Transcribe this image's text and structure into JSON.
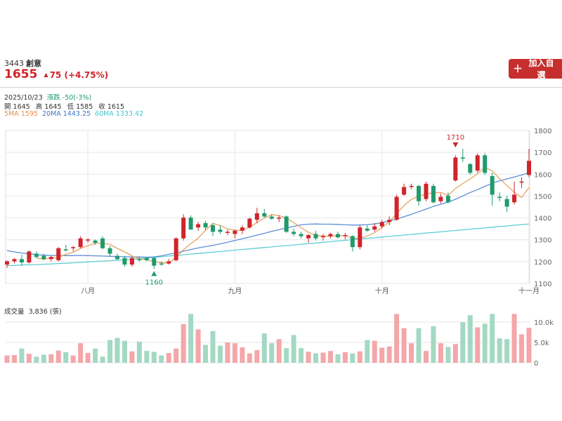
{
  "stock": {
    "code": "3443",
    "name": "創意",
    "price": "1655",
    "change": "75",
    "change_pct": "(+4.75%)",
    "up_icon": "up-triangle-icon",
    "color_up": "#d0242b",
    "color_down": "#1e9b6b"
  },
  "watchlist_button": {
    "label": "加入自選",
    "icon": "plus-icon",
    "color": "#c62f2d"
  },
  "day_info": {
    "date": "2025/10/23",
    "change_text": "漲跌 -50(-3%)",
    "open_label": "開",
    "open": "1645",
    "high_label": "高",
    "high": "1645",
    "low_label": "低",
    "low": "1585",
    "close_label": "收",
    "close": "1615",
    "ma5": "5MA 1595",
    "ma20": "20MA 1443.25",
    "ma60": "60MA 1333.42"
  },
  "volume_panel": {
    "title": "成交量",
    "value": "3,836 (張)"
  },
  "chart_data": {
    "type": "candlestick",
    "price_axis": {
      "min": 1100,
      "max": 1800,
      "ticks": [
        "1800",
        "1700",
        "1600",
        "1500",
        "1400",
        "1300",
        "1200",
        "1100"
      ]
    },
    "x_ticks": [
      {
        "index": 11,
        "label": "八月"
      },
      {
        "index": 31,
        "label": "九月"
      },
      {
        "index": 51,
        "label": "十月"
      },
      {
        "index": 71,
        "label": "十一月"
      }
    ],
    "annotations": [
      {
        "label": "1710",
        "index": 61,
        "value": 1710,
        "kind": "high"
      },
      {
        "label": "1160",
        "index": 20,
        "value": 1160,
        "kind": "low"
      }
    ],
    "candles": [
      [
        1180,
        1200,
        1165,
        1195
      ],
      [
        1195,
        1210,
        1185,
        1205
      ],
      [
        1205,
        1225,
        1175,
        1190
      ],
      [
        1190,
        1245,
        1185,
        1240
      ],
      [
        1230,
        1240,
        1210,
        1215
      ],
      [
        1220,
        1230,
        1200,
        1205
      ],
      [
        1205,
        1220,
        1195,
        1215
      ],
      [
        1200,
        1260,
        1195,
        1255
      ],
      [
        1250,
        1270,
        1240,
        1245
      ],
      [
        1255,
        1265,
        1240,
        1260
      ],
      [
        1260,
        1310,
        1255,
        1300
      ],
      [
        1290,
        1300,
        1280,
        1295
      ],
      [
        1290,
        1295,
        1270,
        1280
      ],
      [
        1300,
        1310,
        1250,
        1255
      ],
      [
        1255,
        1265,
        1220,
        1230
      ],
      [
        1220,
        1230,
        1200,
        1205
      ],
      [
        1210,
        1220,
        1170,
        1180
      ],
      [
        1180,
        1215,
        1170,
        1210
      ],
      [
        1205,
        1215,
        1195,
        1200
      ],
      [
        1210,
        1215,
        1195,
        1200
      ],
      [
        1210,
        1215,
        1160,
        1175
      ],
      [
        1185,
        1195,
        1175,
        1180
      ],
      [
        1185,
        1205,
        1180,
        1195
      ],
      [
        1200,
        1305,
        1195,
        1300
      ],
      [
        1300,
        1410,
        1290,
        1395
      ],
      [
        1395,
        1405,
        1340,
        1340
      ],
      [
        1350,
        1375,
        1335,
        1365
      ],
      [
        1370,
        1380,
        1335,
        1350
      ],
      [
        1360,
        1370,
        1310,
        1330
      ],
      [
        1340,
        1360,
        1320,
        1330
      ],
      [
        1325,
        1340,
        1315,
        1330
      ],
      [
        1320,
        1340,
        1300,
        1335
      ],
      [
        1335,
        1360,
        1320,
        1350
      ],
      [
        1350,
        1395,
        1345,
        1390
      ],
      [
        1385,
        1440,
        1370,
        1415
      ],
      [
        1415,
        1435,
        1395,
        1400
      ],
      [
        1400,
        1410,
        1385,
        1390
      ],
      [
        1390,
        1405,
        1375,
        1395
      ],
      [
        1400,
        1405,
        1325,
        1330
      ],
      [
        1330,
        1345,
        1310,
        1320
      ],
      [
        1320,
        1330,
        1300,
        1310
      ],
      [
        1300,
        1320,
        1280,
        1315
      ],
      [
        1320,
        1335,
        1290,
        1300
      ],
      [
        1305,
        1320,
        1290,
        1310
      ],
      [
        1310,
        1325,
        1300,
        1320
      ],
      [
        1320,
        1330,
        1300,
        1305
      ],
      [
        1310,
        1325,
        1295,
        1315
      ],
      [
        1310,
        1315,
        1240,
        1260
      ],
      [
        1260,
        1360,
        1250,
        1350
      ],
      [
        1345,
        1360,
        1330,
        1335
      ],
      [
        1340,
        1370,
        1330,
        1355
      ],
      [
        1355,
        1385,
        1345,
        1375
      ],
      [
        1375,
        1400,
        1360,
        1385
      ],
      [
        1385,
        1500,
        1380,
        1490
      ],
      [
        1500,
        1550,
        1495,
        1535
      ],
      [
        1535,
        1550,
        1525,
        1540
      ],
      [
        1540,
        1545,
        1450,
        1470
      ],
      [
        1480,
        1560,
        1470,
        1550
      ],
      [
        1540,
        1550,
        1460,
        1465
      ],
      [
        1470,
        1505,
        1460,
        1490
      ],
      [
        1495,
        1510,
        1460,
        1465
      ],
      [
        1565,
        1680,
        1560,
        1670
      ],
      [
        1670,
        1710,
        1650,
        1665
      ],
      [
        1640,
        1645,
        1590,
        1600
      ],
      [
        1610,
        1690,
        1600,
        1680
      ],
      [
        1680,
        1690,
        1590,
        1600
      ],
      [
        1585,
        1600,
        1450,
        1500
      ],
      [
        1490,
        1510,
        1470,
        1485
      ],
      [
        1480,
        1495,
        1420,
        1445
      ],
      [
        1465,
        1560,
        1455,
        1500
      ],
      [
        1555,
        1580,
        1530,
        1560
      ],
      [
        1590,
        1710,
        1580,
        1655
      ]
    ],
    "volume_axis": {
      "min": 0,
      "max": 10000,
      "ticks": [
        "10.0k",
        "5.0k",
        "0"
      ]
    },
    "volume": [
      1800,
      1900,
      3500,
      2200,
      1500,
      2000,
      2100,
      3000,
      2600,
      1800,
      4800,
      2400,
      3500,
      1500,
      5600,
      6100,
      5400,
      2800,
      5200,
      2900,
      2700,
      1800,
      2400,
      3500,
      9500,
      13000,
      8200,
      4400,
      7800,
      4200,
      5000,
      4800,
      3800,
      2300,
      3100,
      7200,
      4800,
      5800,
      3600,
      6800,
      3600,
      2700,
      2300,
      2500,
      2900,
      2100,
      2600,
      2300,
      2800,
      5600,
      5400,
      3700,
      4000,
      13000,
      8500,
      4800,
      8500,
      2900,
      9000,
      4800,
      3900,
      4600,
      10000,
      11700,
      8700,
      9600,
      13700,
      6000,
      5800,
      12000,
      7000,
      8600
    ],
    "ma5": [
      null,
      null,
      null,
      null,
      1210,
      1205,
      1210,
      1213,
      1227,
      1236,
      1254,
      1266,
      1278,
      1278,
      1272,
      1254,
      1238,
      1220,
      1206,
      1203,
      1193,
      1189,
      1186,
      1212,
      1248,
      1276,
      1301,
      1337,
      1368,
      1359,
      1343,
      1337,
      1337,
      1351,
      1373,
      1393,
      1409,
      1404,
      1392,
      1372,
      1349,
      1328,
      1313,
      1311,
      1310,
      1312,
      1313,
      1300,
      1300,
      1311,
      1326,
      1350,
      1376,
      1414,
      1450,
      1479,
      1492,
      1504,
      1508,
      1510,
      1497,
      1528,
      1551,
      1572,
      1596,
      1625,
      1609,
      1573,
      1542,
      1512,
      1487,
      1533
    ],
    "ma20": [
      1244,
      1238,
      1233,
      1229,
      1226,
      1223,
      1222,
      1221,
      1221,
      1221,
      1222,
      1221,
      1220,
      1219,
      1218,
      1217,
      1216,
      1215,
      1215,
      1214,
      1215,
      1220,
      1227,
      1233,
      1241,
      1249,
      1256,
      1262,
      1268,
      1275,
      1282,
      1290,
      1298,
      1306,
      1315,
      1323,
      1332,
      1340,
      1348,
      1355,
      1362,
      1365,
      1366,
      1365,
      1365,
      1364,
      1362,
      1361,
      1361,
      1363,
      1366,
      1372,
      1380,
      1389,
      1399,
      1410,
      1422,
      1434,
      1446,
      1456,
      1466,
      1479,
      1494,
      1510,
      1523,
      1538,
      1552,
      1563,
      1572,
      1581,
      1590,
      1600
    ],
    "ma60": [
      1175,
      1176,
      1178,
      1179,
      1180,
      1182,
      1183,
      1185,
      1186,
      1188,
      1190,
      1192,
      1194,
      1196,
      1198,
      1200,
      1202,
      1205,
      1207,
      1210,
      1213,
      1216,
      1219,
      1222,
      1225,
      1228,
      1231,
      1234,
      1237,
      1240,
      1243,
      1246,
      1249,
      1252,
      1255,
      1258,
      1261,
      1264,
      1267,
      1270,
      1273,
      1276,
      1279,
      1282,
      1285,
      1288,
      1291,
      1294,
      1297,
      1300,
      1303,
      1306,
      1309,
      1312,
      1315,
      1318,
      1321,
      1324,
      1327,
      1330,
      1333,
      1336,
      1339,
      1342,
      1345,
      1348,
      1351,
      1354,
      1357,
      1360,
      1363,
      1366
    ]
  }
}
